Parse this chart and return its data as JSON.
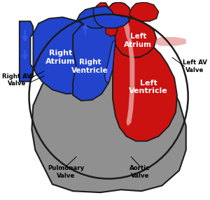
{
  "bg_color": "#ffffff",
  "gray_color": "#909090",
  "blue_color": "#2244cc",
  "blue_bright": "#3355ee",
  "red_color": "#cc1111",
  "red_dark": "#aa0000",
  "pink_color": "#e8a0a0",
  "pink_light": "#f0c0c0",
  "dark_outline": "#1a1a1a",
  "labels": {
    "right_atrium": "Right\nAtrium",
    "left_atrium": "Left\nAtrium",
    "right_ventricle": "Right\nVentricle",
    "left_ventricle": "Left\nVentricle",
    "right_av_valve": "Right AV\nValve",
    "left_av_valve": "Left AV\nValve",
    "pulmonary_valve": "Pulmonary\nValve",
    "aortic_valve": "Aortic\nValve"
  }
}
